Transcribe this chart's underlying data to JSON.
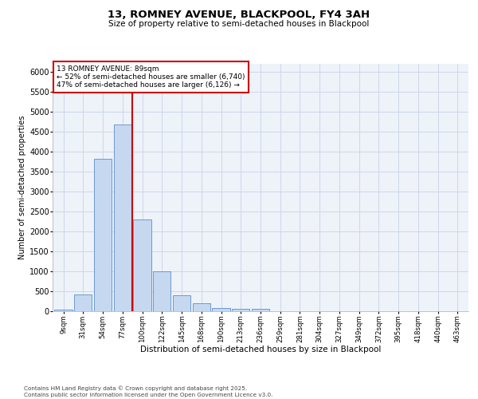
{
  "title1": "13, ROMNEY AVENUE, BLACKPOOL, FY4 3AH",
  "title2": "Size of property relative to semi-detached houses in Blackpool",
  "xlabel": "Distribution of semi-detached houses by size in Blackpool",
  "ylabel": "Number of semi-detached properties",
  "categories": [
    "9sqm",
    "31sqm",
    "54sqm",
    "77sqm",
    "100sqm",
    "122sqm",
    "145sqm",
    "168sqm",
    "190sqm",
    "213sqm",
    "236sqm",
    "259sqm",
    "281sqm",
    "304sqm",
    "327sqm",
    "349sqm",
    "372sqm",
    "395sqm",
    "418sqm",
    "440sqm",
    "463sqm"
  ],
  "bar_values": [
    50,
    430,
    3820,
    4680,
    2300,
    1000,
    410,
    200,
    90,
    65,
    65,
    0,
    0,
    0,
    0,
    0,
    0,
    0,
    0,
    0,
    0
  ],
  "bar_color": "#c5d8f0",
  "bar_edge_color": "#5b8fc9",
  "vline_x": 3.5,
  "vline_color": "#cc0000",
  "annotation_title": "13 ROMNEY AVENUE: 89sqm",
  "annotation_line1": "← 52% of semi-detached houses are smaller (6,740)",
  "annotation_line2": "47% of semi-detached houses are larger (6,126) →",
  "annotation_box_color": "#cc0000",
  "ylim": [
    0,
    6200
  ],
  "yticks": [
    0,
    500,
    1000,
    1500,
    2000,
    2500,
    3000,
    3500,
    4000,
    4500,
    5000,
    5500,
    6000
  ],
  "footer1": "Contains HM Land Registry data © Crown copyright and database right 2025.",
  "footer2": "Contains public sector information licensed under the Open Government Licence v3.0.",
  "bg_color": "#eef2f9",
  "grid_color": "#c8d4e8"
}
